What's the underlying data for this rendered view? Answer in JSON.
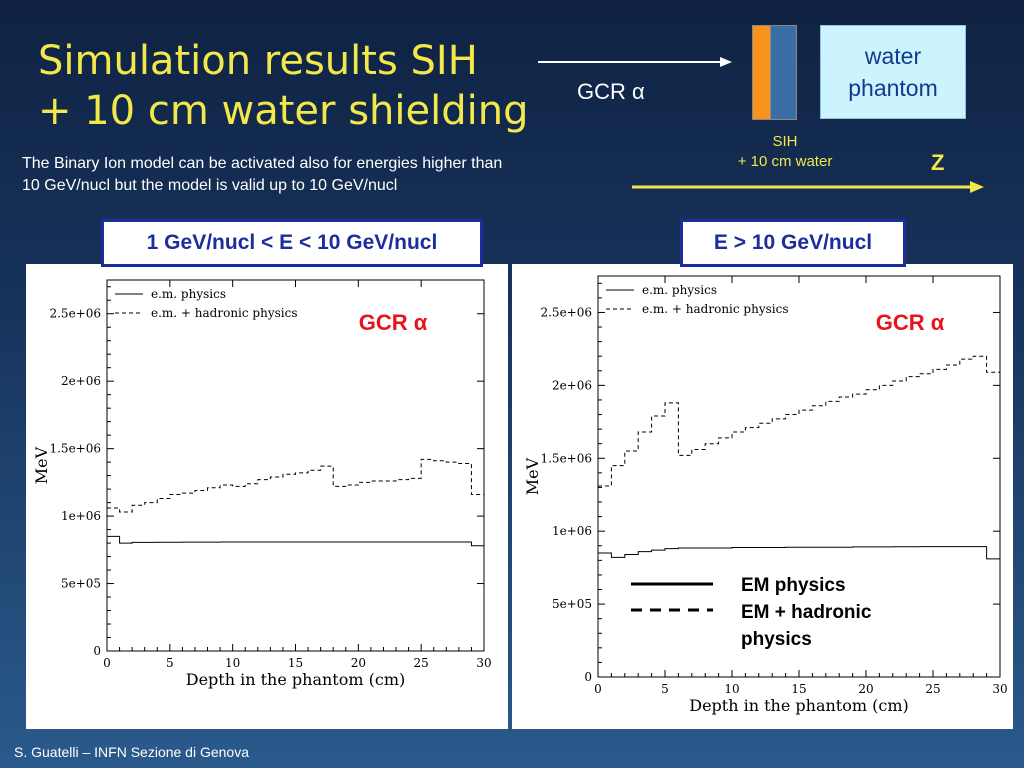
{
  "slide": {
    "title_line1": "Simulation results SIH",
    "title_line2": "+ 10 cm water shielding",
    "note_line1": "The Binary Ion model can be activated also for energies higher than",
    "note_line2": "10 GeV/nucl but the model is valid up to 10 GeV/nucl",
    "beam_label": "GCR α",
    "sih_line1": "SIH",
    "sih_line2": "+ 10 cm water",
    "phantom_line1": "water",
    "phantom_line2": "phantom",
    "axis_z": "Z",
    "footer": "S. Guatelli – INFN Sezione di Genova",
    "colors": {
      "title": "#f2e84a",
      "box_border": "#1c2d9c",
      "gcr_text": "#e8141c",
      "orange": "#f7941d",
      "blue": "#3b6ea5"
    }
  },
  "legend_overlay": {
    "solid_label": "EM physics",
    "dashed_line1": "EM + hadronic",
    "dashed_line2": "physics"
  },
  "chart_data": [
    {
      "type": "line",
      "panel_label": "1 GeV/nucl < E < 10 GeV/nucl",
      "annotation": "GCR α",
      "xlabel": "Depth in the phantom (cm)",
      "ylabel": "MeV",
      "xlim": [
        0,
        30
      ],
      "ylim": [
        0,
        2750000
      ],
      "xticks": [
        0,
        5,
        10,
        15,
        20,
        25,
        30
      ],
      "xtick_labels": [
        "0",
        "5",
        "10",
        "15",
        "20",
        "25",
        "30"
      ],
      "yticks": [
        0,
        500000,
        1000000,
        1500000,
        2000000,
        2500000
      ],
      "ytick_labels": [
        "0",
        "5e+05",
        "1e+06",
        "1.5e+06",
        "2e+06",
        "2.5e+06"
      ],
      "legend_position": "top-left",
      "x_edges": [
        0,
        1,
        2,
        3,
        4,
        5,
        6,
        7,
        8,
        9,
        10,
        11,
        12,
        13,
        14,
        15,
        16,
        17,
        18,
        19,
        20,
        21,
        22,
        23,
        24,
        25,
        26,
        27,
        28,
        29,
        30
      ],
      "series": [
        {
          "name": "e.m. physics",
          "style": "solid",
          "values": [
            850000,
            800000,
            805000,
            805000,
            806000,
            806000,
            807000,
            807000,
            807000,
            808000,
            808000,
            808000,
            808000,
            808000,
            808000,
            808000,
            808000,
            808000,
            808000,
            808000,
            808000,
            808000,
            808000,
            808000,
            808000,
            808000,
            808000,
            808000,
            808000,
            780000
          ]
        },
        {
          "name": "e.m. + hadronic physics",
          "style": "dashed",
          "values": [
            1060000,
            1030000,
            1080000,
            1100000,
            1130000,
            1160000,
            1170000,
            1190000,
            1210000,
            1230000,
            1220000,
            1240000,
            1270000,
            1290000,
            1310000,
            1320000,
            1340000,
            1370000,
            1220000,
            1230000,
            1250000,
            1260000,
            1260000,
            1270000,
            1280000,
            1420000,
            1410000,
            1400000,
            1390000,
            1160000
          ]
        }
      ]
    },
    {
      "type": "line",
      "panel_label": "E > 10 GeV/nucl",
      "annotation": "GCR α",
      "xlabel": "Depth in the phantom (cm)",
      "ylabel": "MeV",
      "xlim": [
        0,
        30
      ],
      "ylim": [
        0,
        2750000
      ],
      "xticks": [
        0,
        5,
        10,
        15,
        20,
        25,
        30
      ],
      "xtick_labels": [
        "0",
        "5",
        "10",
        "15",
        "20",
        "25",
        "30"
      ],
      "yticks": [
        0,
        500000,
        1000000,
        1500000,
        2000000,
        2500000
      ],
      "ytick_labels": [
        "0",
        "5e+05",
        "1e+06",
        "1.5e+06",
        "2e+06",
        "2.5e+06"
      ],
      "legend_position": "top-left",
      "x_edges": [
        0,
        1,
        2,
        3,
        4,
        5,
        6,
        7,
        8,
        9,
        10,
        11,
        12,
        13,
        14,
        15,
        16,
        17,
        18,
        19,
        20,
        21,
        22,
        23,
        24,
        25,
        26,
        27,
        28,
        29,
        30
      ],
      "series": [
        {
          "name": "e.m. physics",
          "style": "solid",
          "values": [
            850000,
            820000,
            840000,
            860000,
            870000,
            880000,
            885000,
            885000,
            885000,
            885000,
            888000,
            888000,
            888000,
            888000,
            890000,
            890000,
            890000,
            890000,
            890000,
            892000,
            892000,
            892000,
            893000,
            893000,
            894000,
            894000,
            894000,
            894000,
            894000,
            810000
          ]
        },
        {
          "name": "e.m. + hadronic physics",
          "style": "dashed",
          "values": [
            1310000,
            1450000,
            1550000,
            1680000,
            1790000,
            1880000,
            1520000,
            1560000,
            1600000,
            1640000,
            1680000,
            1710000,
            1740000,
            1770000,
            1800000,
            1830000,
            1860000,
            1890000,
            1920000,
            1940000,
            1970000,
            2000000,
            2030000,
            2060000,
            2080000,
            2110000,
            2140000,
            2180000,
            2200000,
            2090000
          ]
        }
      ]
    }
  ]
}
